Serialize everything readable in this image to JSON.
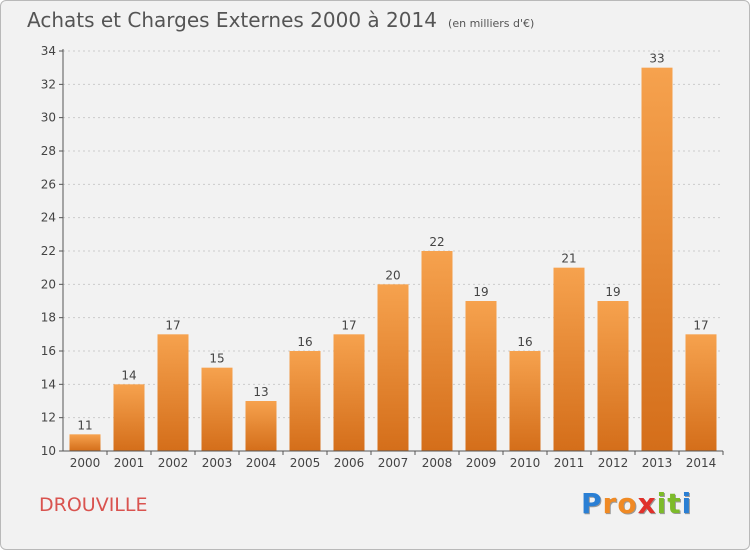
{
  "title": "Achats et Charges Externes 2000 à 2014",
  "unit": "(en milliers d'€)",
  "place": "DROUVILLE",
  "brand": {
    "letters": [
      "P",
      "r",
      "o",
      "x",
      "i",
      "t",
      "i"
    ],
    "colors": [
      "#2a7fd4",
      "#f08a24",
      "#f08a24",
      "#e0312b",
      "#7dbb2a",
      "#7dbb2a",
      "#2a7fd4"
    ]
  },
  "colors": {
    "bar": "#f0913a",
    "bar_dark": "#d46e1a",
    "axis": "#555555",
    "grid": "#cccccc",
    "text": "#444444"
  },
  "chart_data": {
    "type": "bar",
    "title": "Achats et Charges Externes 2000 à 2014",
    "categories": [
      "2000",
      "2001",
      "2002",
      "2003",
      "2004",
      "2005",
      "2006",
      "2007",
      "2008",
      "2009",
      "2010",
      "2011",
      "2012",
      "2013",
      "2014"
    ],
    "values": [
      11,
      14,
      17,
      15,
      13,
      16,
      17,
      20,
      22,
      19,
      16,
      21,
      19,
      33,
      17
    ],
    "ylim": [
      10,
      34
    ],
    "yticks": [
      10,
      12,
      14,
      16,
      18,
      20,
      22,
      24,
      26,
      28,
      30,
      32,
      34
    ],
    "grid": true
  }
}
